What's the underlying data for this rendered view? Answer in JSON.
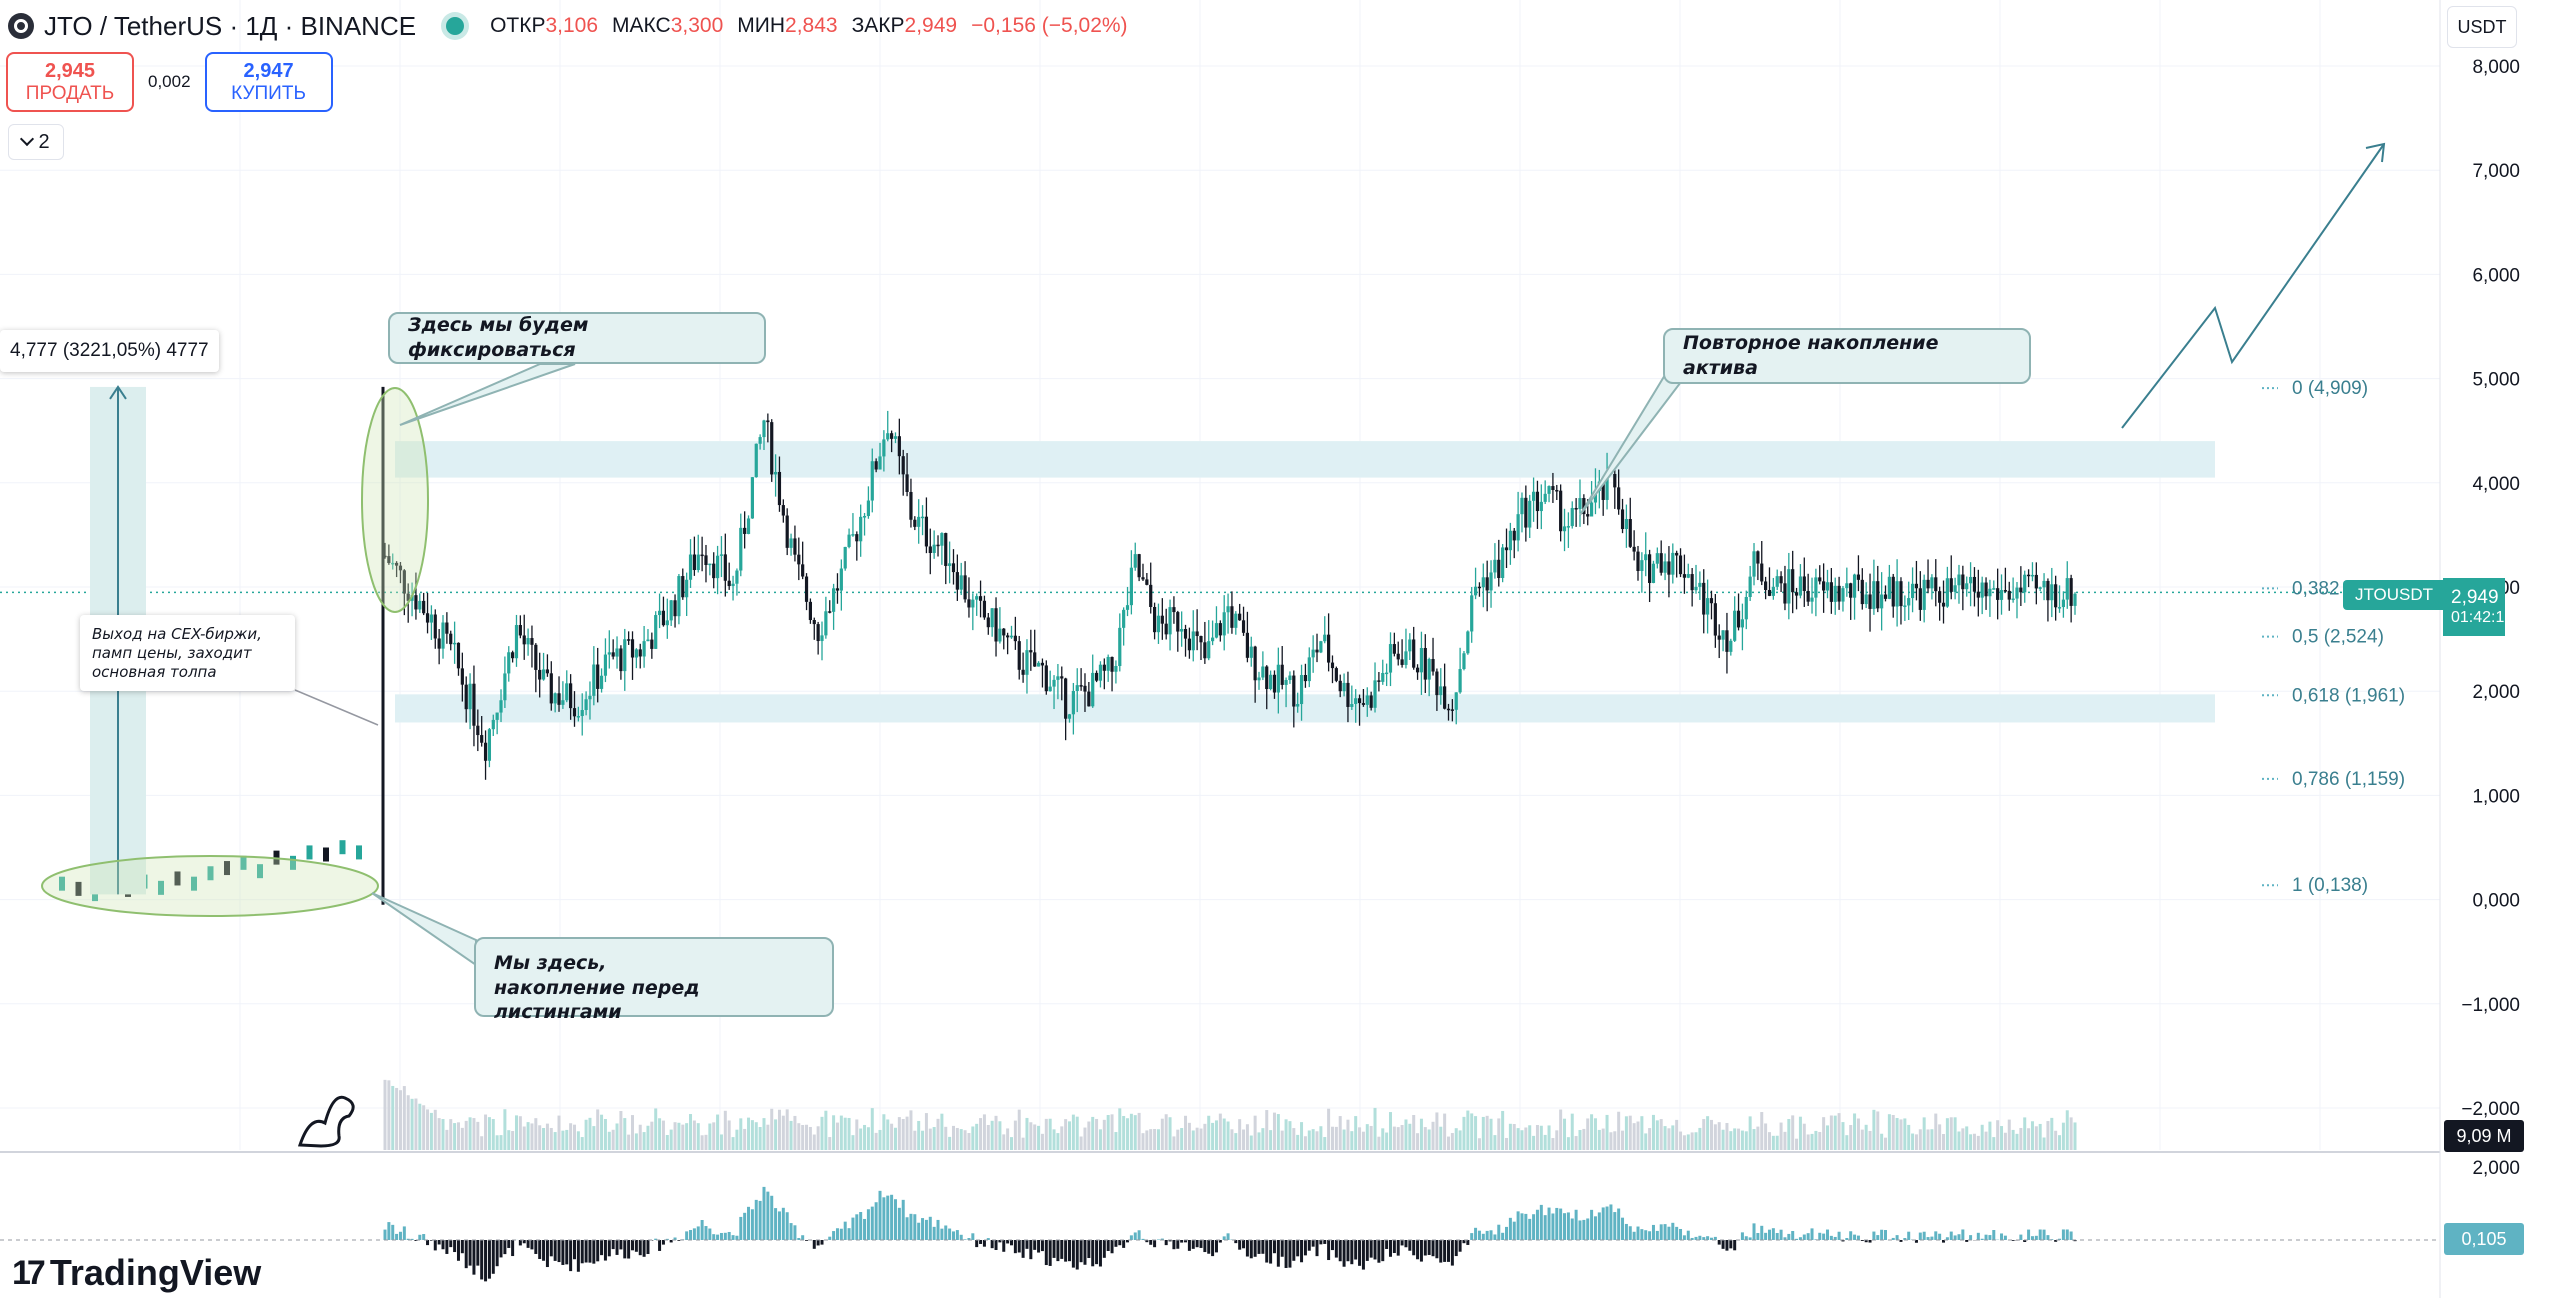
{
  "header": {
    "symbol": "JTO / TetherUS · 1Д · BINANCE",
    "open_label": "ОТКР",
    "open": "3,106",
    "high_label": "МАКС",
    "high": "3,300",
    "low_label": "МИН",
    "low": "2,843",
    "close_label": "ЗАКР",
    "close": "2,949",
    "change": "−0,156 (−5,02%)"
  },
  "trade": {
    "sell_price": "2,945",
    "sell_label": "ПРОДАТЬ",
    "spread": "0,002",
    "buy_price": "2,947",
    "buy_label": "КУПИТЬ"
  },
  "indicators_count": "2",
  "currency": "USDT",
  "measure_label": "4,777 (3221,05%) 4777",
  "annotations": {
    "fix": "Здесь мы будем фиксироваться",
    "reaccum": "Повторное накопление актива",
    "here_l1": "Мы здесь,",
    "here_l2": "накопление перед листингами",
    "cex_l1": "Выход на CEX-биржи,",
    "cex_l2": "памп цены, заходит",
    "cex_l3": "основная толпа"
  },
  "price_tag": {
    "symbol": "JTOUSDT",
    "price": "2,949",
    "timer": "01:42:15"
  },
  "volume_tag": "9,09 M",
  "osc_tag": "0,105",
  "brand": "TradingView",
  "colors": {
    "up": "#26a69a",
    "down": "#131722",
    "accent": "#5fb3c3",
    "zone": "#dff0f4",
    "sell": "#ef5350",
    "buy": "#2962ff"
  },
  "chart_data": {
    "type": "candlestick",
    "y_axis_ticks": [
      "8,000",
      "7,000",
      "6,000",
      "5,000",
      "4,000",
      "3,000",
      "2,000",
      "1,000",
      "0,000",
      "−1,000",
      "−2,000"
    ],
    "osc_axis_tick": "2,000",
    "ylim": [
      -2.4,
      8.3
    ],
    "fib_levels": [
      {
        "label": "0 (4,909)",
        "value": 4.909
      },
      {
        "label": "0,382 (2,987)",
        "value": 2.987
      },
      {
        "label": "0,5 (2,524)",
        "value": 2.524
      },
      {
        "label": "0,618 (1,961)",
        "value": 1.961
      },
      {
        "label": "0,786 (1,159)",
        "value": 1.159
      },
      {
        "label": "1 (0,138)",
        "value": 0.138
      }
    ],
    "zones": [
      [
        4.05,
        4.4
      ],
      [
        1.7,
        1.97
      ]
    ],
    "price_path": {
      "days": [
        0,
        12,
        18,
        26,
        34,
        42,
        50,
        58,
        66,
        74,
        82,
        90,
        98,
        106,
        112,
        118,
        124,
        130,
        136,
        140,
        146,
        152,
        158,
        164,
        170,
        176,
        182,
        188,
        194,
        200,
        206,
        212,
        218,
        224,
        230,
        236,
        242,
        248,
        254,
        260,
        264,
        270,
        276,
        282,
        288,
        294,
        300,
        306,
        312,
        318,
        324,
        330,
        336,
        342,
        348,
        354,
        360,
        366,
        372,
        378,
        384,
        390,
        396,
        402,
        408,
        414,
        420,
        426,
        432,
        437
      ],
      "close": [
        3.3,
        2.7,
        2.3,
        1.5,
        2.6,
        2.0,
        1.9,
        2.3,
        2.4,
        2.8,
        3.4,
        3.0,
        4.6,
        3.2,
        2.6,
        3.1,
        3.8,
        4.6,
        3.7,
        3.5,
        3.3,
        2.8,
        2.6,
        2.3,
        2.2,
        1.9,
        2.0,
        2.2,
        3.2,
        2.6,
        2.7,
        2.3,
        2.8,
        2.3,
        2.1,
        2.0,
        2.5,
        2.0,
        1.9,
        2.3,
        2.4,
        2.2,
        1.9,
        3.0,
        3.2,
        3.7,
        3.9,
        3.6,
        3.8,
        4.0,
        3.1,
        3.3,
        3.2,
        2.8,
        2.5,
        3.2,
        3.0,
        3.0,
        2.949,
        2.95,
        2.95,
        2.95,
        2.95,
        2.95,
        2.95,
        2.95,
        2.95,
        2.95,
        2.95,
        2.949
      ]
    }
  }
}
